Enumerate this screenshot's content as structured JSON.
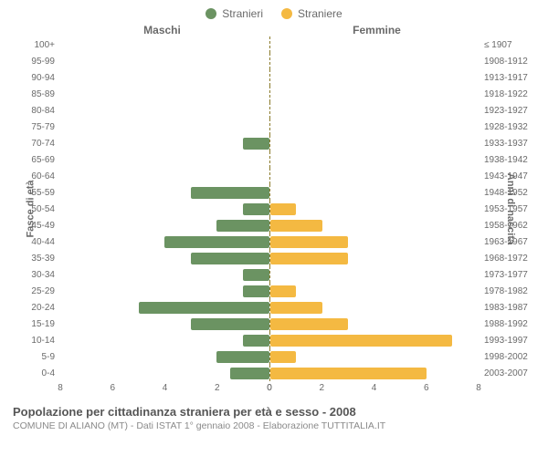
{
  "type": "population-pyramid",
  "legend": {
    "male": {
      "label": "Stranieri",
      "color": "#6b9362"
    },
    "female": {
      "label": "Straniere",
      "color": "#f4b942"
    }
  },
  "headers": {
    "male": "Maschi",
    "female": "Femmine"
  },
  "axis_labels": {
    "left": "Fasce di età",
    "right": "Anni di nascita"
  },
  "x": {
    "max": 8,
    "ticks_left": [
      8,
      6,
      4,
      2,
      0
    ],
    "ticks_right": [
      0,
      2,
      4,
      6,
      8
    ]
  },
  "rows": [
    {
      "age": "100+",
      "year": "≤ 1907",
      "m": 0,
      "f": 0
    },
    {
      "age": "95-99",
      "year": "1908-1912",
      "m": 0,
      "f": 0
    },
    {
      "age": "90-94",
      "year": "1913-1917",
      "m": 0,
      "f": 0
    },
    {
      "age": "85-89",
      "year": "1918-1922",
      "m": 0,
      "f": 0
    },
    {
      "age": "80-84",
      "year": "1923-1927",
      "m": 0,
      "f": 0
    },
    {
      "age": "75-79",
      "year": "1928-1932",
      "m": 0,
      "f": 0
    },
    {
      "age": "70-74",
      "year": "1933-1937",
      "m": 1,
      "f": 0
    },
    {
      "age": "65-69",
      "year": "1938-1942",
      "m": 0,
      "f": 0
    },
    {
      "age": "60-64",
      "year": "1943-1947",
      "m": 0,
      "f": 0
    },
    {
      "age": "55-59",
      "year": "1948-1952",
      "m": 3,
      "f": 0
    },
    {
      "age": "50-54",
      "year": "1953-1957",
      "m": 1,
      "f": 1
    },
    {
      "age": "45-49",
      "year": "1958-1962",
      "m": 2,
      "f": 2
    },
    {
      "age": "40-44",
      "year": "1963-1967",
      "m": 4,
      "f": 3
    },
    {
      "age": "35-39",
      "year": "1968-1972",
      "m": 3,
      "f": 3
    },
    {
      "age": "30-34",
      "year": "1973-1977",
      "m": 1,
      "f": 0
    },
    {
      "age": "25-29",
      "year": "1978-1982",
      "m": 1,
      "f": 1
    },
    {
      "age": "20-24",
      "year": "1983-1987",
      "m": 5,
      "f": 2
    },
    {
      "age": "15-19",
      "year": "1988-1992",
      "m": 3,
      "f": 3
    },
    {
      "age": "10-14",
      "year": "1993-1997",
      "m": 1,
      "f": 7
    },
    {
      "age": "5-9",
      "year": "1998-2002",
      "m": 2,
      "f": 1
    },
    {
      "age": "0-4",
      "year": "2003-2007",
      "m": 1.5,
      "f": 6
    }
  ],
  "colors": {
    "background": "#ffffff",
    "grid": "#e0e0e0",
    "text": "#6a6a6a",
    "centerline": "#8a7a2a"
  },
  "footer": {
    "title": "Popolazione per cittadinanza straniera per età e sesso - 2008",
    "sub": "COMUNE DI ALIANO (MT) - Dati ISTAT 1° gennaio 2008 - Elaborazione TUTTITALIA.IT"
  }
}
